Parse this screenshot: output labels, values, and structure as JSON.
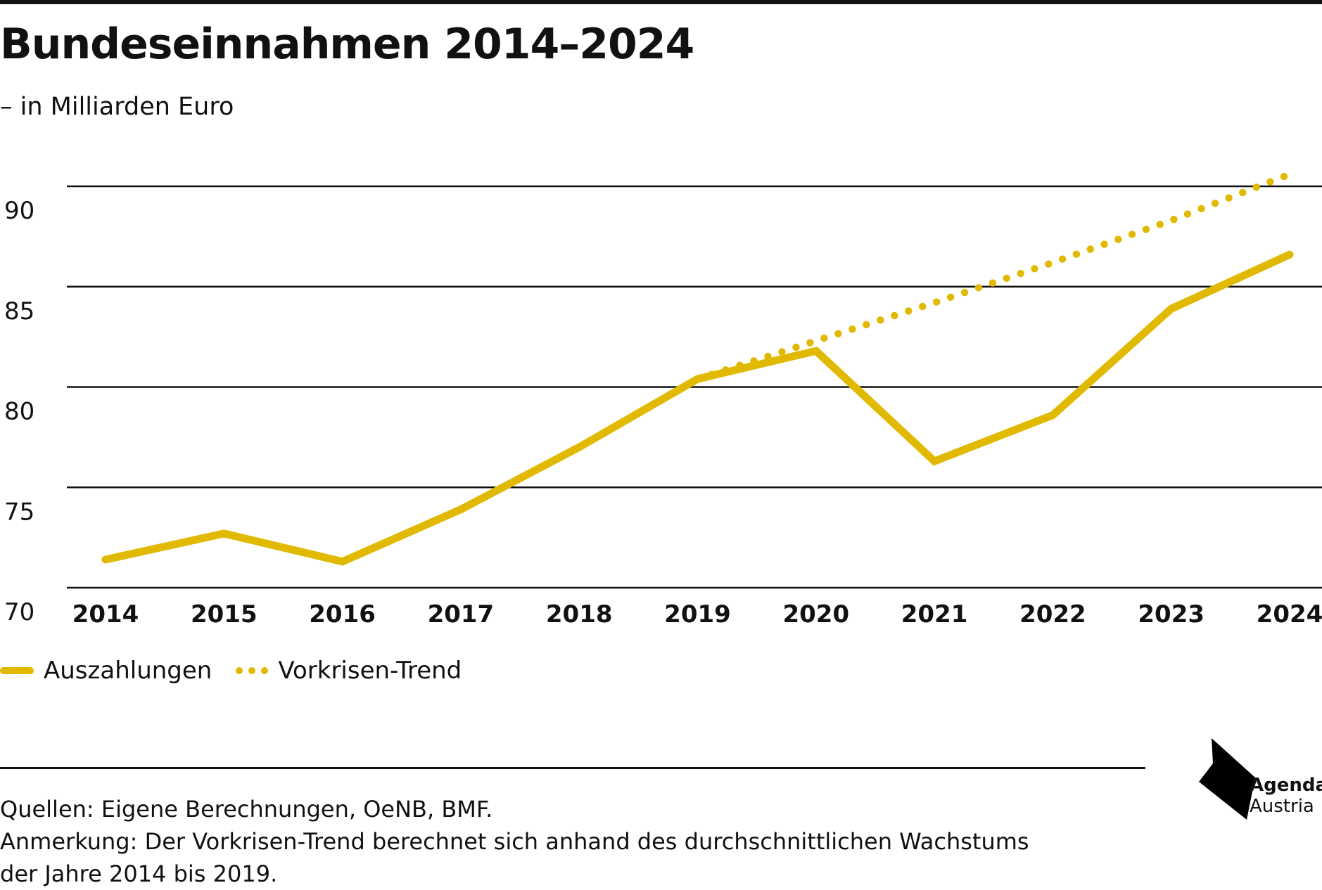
{
  "header": {
    "title": "Bundeseinnahmen 2014–2024",
    "subtitle": "– in Milliarden Euro"
  },
  "colors": {
    "series": "#E1B900",
    "gridline": "#111111",
    "text": "#111111"
  },
  "chart_data": {
    "type": "line",
    "title": "Bundeseinnahmen 2014–2024",
    "subtitle": "– in Milliarden Euro",
    "xlabel": "",
    "ylabel": "",
    "x": [
      "2014",
      "2015",
      "2016",
      "2017",
      "2018",
      "2019",
      "2020",
      "2021",
      "2022",
      "2023",
      "2024"
    ],
    "ylim": [
      70,
      90
    ],
    "yticks": [
      "70",
      "75",
      "80",
      "85",
      "90"
    ],
    "grid": true,
    "legend_position": "bottom-left",
    "series": [
      {
        "name": "Auszahlungen",
        "style": "solid",
        "color": "#E1B900",
        "x": [
          "2014",
          "2015",
          "2016",
          "2017",
          "2018",
          "2019",
          "2020",
          "2021",
          "2022",
          "2023",
          "2024"
        ],
        "values": [
          71.4,
          72.7,
          71.3,
          73.9,
          77.0,
          80.4,
          81.8,
          76.3,
          78.6,
          83.9,
          86.6
        ]
      },
      {
        "name": "Vorkrisen-Trend",
        "style": "dotted",
        "color": "#E1B900",
        "x": [
          "2019",
          "2020",
          "2021",
          "2022",
          "2023",
          "2024"
        ],
        "values": [
          80.4,
          82.3,
          84.2,
          86.2,
          88.3,
          90.6
        ]
      }
    ]
  },
  "legend": {
    "items": [
      {
        "label": "Auszahlungen"
      },
      {
        "label": "Vorkrisen-Trend"
      }
    ]
  },
  "footer": {
    "source": "Quellen: Eigene Berechnungen, OeNB, BMF.",
    "note_line1": "Anmerkung: Der Vorkrisen-Trend berechnet sich anhand des durchschnittlichen Wachstums",
    "note_line2": "der Jahre 2014 bis 2019."
  },
  "logo": {
    "name": "Agenda",
    "sub": "Austria",
    "icon": "agenda-austria-logo-icon"
  }
}
